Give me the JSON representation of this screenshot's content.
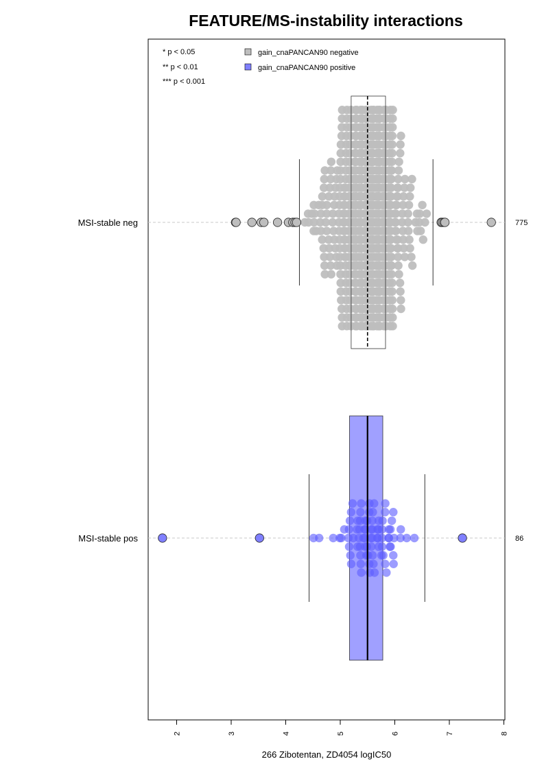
{
  "chart_data": {
    "type": "scatter",
    "subtype": "horizontal beeswarm with boxplots",
    "title": "FEATURE/MS-instability interactions",
    "xlabel": "266 Zibotentan, ZD4054 logIC50",
    "xlim": [
      1.5,
      8.0
    ],
    "xticks": [
      "2",
      "3",
      "4",
      "5",
      "6",
      "7",
      "8"
    ],
    "significance_legend": [
      "* p < 0.05",
      "** p < 0.01",
      "*** p < 0.001"
    ],
    "legend": {
      "placement": "top",
      "entries": [
        {
          "label": "gain_cnaPANCAN90 negative",
          "color": "#bebebe"
        },
        {
          "label": "gain_cnaPANCAN90 positive",
          "color": "#8080ff"
        }
      ]
    },
    "groups": [
      {
        "label": "MSI-stable neg",
        "count_label": "775",
        "n": 775,
        "color": "#bebebe",
        "box": {
          "whisker_low": 4.25,
          "q1": 5.2,
          "median": 5.5,
          "q3": 5.83,
          "whisker_high": 6.7
        },
        "outliers": [
          3.08,
          3.09,
          3.38,
          3.55,
          3.6,
          3.85,
          4.05,
          4.13,
          4.17,
          4.2,
          6.85,
          6.87,
          6.9,
          6.92,
          7.77
        ]
      },
      {
        "label": "MSI-stable pos",
        "count_label": "86",
        "n": 86,
        "color": "#8080ff",
        "box": {
          "whisker_low": 4.43,
          "q1": 5.17,
          "median": 5.5,
          "q3": 5.78,
          "whisker_high": 6.55
        },
        "outliers": [
          1.74,
          3.52,
          7.24
        ]
      }
    ]
  }
}
